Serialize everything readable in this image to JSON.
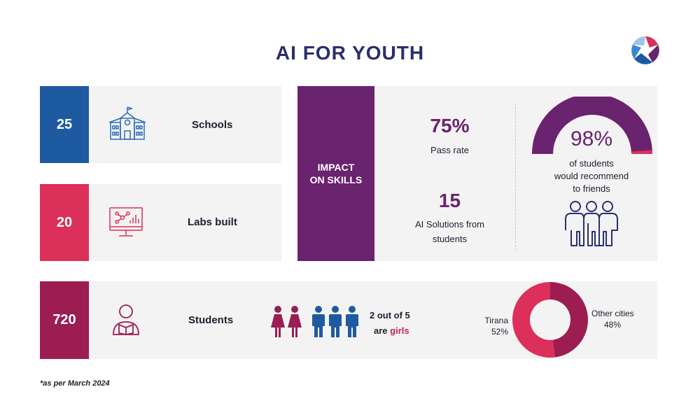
{
  "title": "AI FOR YOUTH",
  "colors": {
    "blue": "#1e5aa0",
    "pink": "#dc2f5a",
    "maroon": "#9b1d52",
    "purple": "#6a236e",
    "panel": "#f3f3f4",
    "navy": "#2a2f6b"
  },
  "stats": {
    "schools": {
      "value": "25",
      "label": "Schools",
      "icon": "school-building-icon"
    },
    "labs": {
      "value": "20",
      "label": "Labs built",
      "icon": "computer-monitor-icon"
    },
    "students": {
      "value": "720",
      "label": "Students",
      "icon": "student-reading-icon"
    }
  },
  "impact": {
    "heading_line1": "IMPACT",
    "heading_line2": "ON SKILLS",
    "pass_rate_value": "75%",
    "pass_rate_label": "Pass rate",
    "solutions_value": "15",
    "solutions_label_line1": "AI Solutions from",
    "solutions_label_line2": "students",
    "recommend_value": "98%",
    "recommend_fraction": 0.98,
    "recommend_line1": "of students",
    "recommend_line2": "would recommend",
    "recommend_line3": "to friends",
    "people_icon": "group-of-people-icon"
  },
  "gender": {
    "line1": "2 out of 5",
    "line2_prefix": "are ",
    "line2_highlight": "girls",
    "girls": 2,
    "total": 5
  },
  "cities": {
    "tirana_label": "Tirana",
    "tirana_value": "52%",
    "other_label": "Other cities",
    "other_value": "48%"
  },
  "chart_data": {
    "type": "pie",
    "categories": [
      "Tirana",
      "Other cities"
    ],
    "values": [
      52,
      48
    ],
    "title": ""
  },
  "footnote": "*as per March 2024"
}
